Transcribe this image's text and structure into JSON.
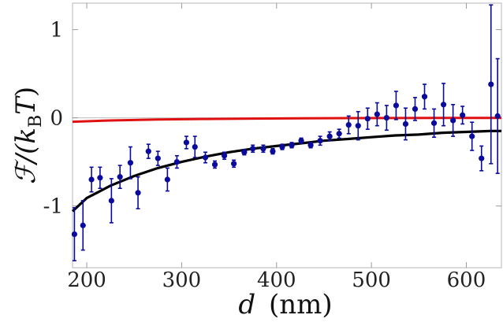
{
  "chart_data": {
    "type": "scatter",
    "title": "",
    "xlabel": "d (nm)",
    "xlabel_symbol": "d",
    "xlabel_unit": "(nm)",
    "ylabel": "ℱ/(k_B T)",
    "ylabel_parts": {
      "prefix": "ℱ/(",
      "k": "k",
      "sub": "B",
      "T": "T",
      "suffix": ")"
    },
    "xlim": [
      185,
      637
    ],
    "ylim": [
      -1.7,
      1.3
    ],
    "x_ticks": [
      200,
      300,
      400,
      500,
      600
    ],
    "x_tick_labels": [
      "200",
      "300",
      "400",
      "500",
      "600"
    ],
    "y_ticks": [
      1,
      0,
      -1
    ],
    "y_tick_labels": [
      "1",
      "0",
      "-1"
    ],
    "reference_line_y": 0,
    "colors": {
      "points": "#0a0a9c",
      "red_curve": "#e01010",
      "black_curve": "#000000",
      "reference": "#c8c8c8"
    },
    "series": [
      {
        "name": "measured",
        "kind": "points_with_errorbars",
        "x": [
          187,
          196,
          205,
          214,
          226,
          235,
          246,
          254,
          265,
          275,
          285,
          295,
          305,
          314,
          325,
          335,
          345,
          355,
          366,
          375,
          386,
          396,
          406,
          416,
          426,
          436,
          446,
          456,
          466,
          476,
          486,
          496,
          506,
          516,
          526,
          536,
          546,
          556,
          566,
          576,
          586,
          596,
          606,
          616,
          626,
          633
        ],
        "y": [
          -1.32,
          -1.22,
          -0.7,
          -0.68,
          -0.94,
          -0.67,
          -0.51,
          -0.85,
          -0.38,
          -0.46,
          -0.7,
          -0.5,
          -0.28,
          -0.33,
          -0.45,
          -0.53,
          -0.43,
          -0.52,
          -0.39,
          -0.35,
          -0.35,
          -0.38,
          -0.33,
          -0.31,
          -0.26,
          -0.31,
          -0.26,
          -0.21,
          -0.18,
          -0.08,
          -0.09,
          -0.01,
          0.04,
          0.0,
          0.14,
          -0.07,
          0.1,
          0.24,
          -0.06,
          0.15,
          -0.03,
          0.03,
          -0.21,
          -0.46,
          0.38,
          0.02
        ],
        "err": [
          0.3,
          0.28,
          0.14,
          0.12,
          0.25,
          0.13,
          0.18,
          0.18,
          0.08,
          0.08,
          0.13,
          0.07,
          0.07,
          0.12,
          0.06,
          0.04,
          0.04,
          0.04,
          0.03,
          0.04,
          0.04,
          0.03,
          0.03,
          0.03,
          0.03,
          0.03,
          0.05,
          0.05,
          0.05,
          0.1,
          0.16,
          0.12,
          0.13,
          0.14,
          0.16,
          0.18,
          0.13,
          0.14,
          0.16,
          0.24,
          0.18,
          0.1,
          0.16,
          0.14,
          0.9,
          0.65
        ]
      },
      {
        "name": "black-theory",
        "kind": "line",
        "x": [
          185,
          200,
          225,
          250,
          275,
          300,
          325,
          350,
          375,
          400,
          425,
          450,
          475,
          500,
          525,
          550,
          575,
          600,
          625,
          637
        ],
        "y": [
          -1.06,
          -0.91,
          -0.77,
          -0.66,
          -0.57,
          -0.5,
          -0.44,
          -0.39,
          -0.35,
          -0.32,
          -0.29,
          -0.26,
          -0.24,
          -0.22,
          -0.2,
          -0.19,
          -0.17,
          -0.16,
          -0.15,
          -0.15
        ]
      },
      {
        "name": "red-theory",
        "kind": "line",
        "x": [
          185,
          225,
          275,
          325,
          375,
          425,
          475,
          525,
          575,
          637
        ],
        "y": [
          -0.045,
          -0.03,
          -0.02,
          -0.013,
          -0.009,
          -0.006,
          -0.004,
          -0.003,
          -0.002,
          -0.001
        ]
      }
    ]
  }
}
